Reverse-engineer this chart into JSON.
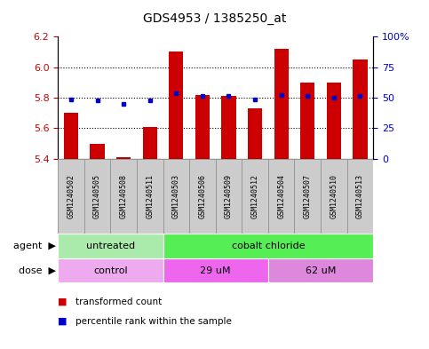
{
  "title": "GDS4953 / 1385250_at",
  "samples": [
    "GSM1240502",
    "GSM1240505",
    "GSM1240508",
    "GSM1240511",
    "GSM1240503",
    "GSM1240506",
    "GSM1240509",
    "GSM1240512",
    "GSM1240504",
    "GSM1240507",
    "GSM1240510",
    "GSM1240513"
  ],
  "red_values": [
    5.7,
    5.5,
    5.41,
    5.61,
    6.1,
    5.82,
    5.81,
    5.73,
    6.12,
    5.9,
    5.9,
    6.05
  ],
  "blue_values": [
    5.79,
    5.78,
    5.76,
    5.78,
    5.83,
    5.81,
    5.81,
    5.79,
    5.82,
    5.81,
    5.8,
    5.81
  ],
  "ymin": 5.4,
  "ymax": 6.2,
  "yticks": [
    5.4,
    5.6,
    5.8,
    6.0,
    6.2
  ],
  "right_yticks": [
    0,
    25,
    50,
    75,
    100
  ],
  "right_ylabels": [
    "0",
    "25",
    "50",
    "75",
    "100%"
  ],
  "bar_color": "#cc0000",
  "dot_color": "#0000cc",
  "agent_groups": [
    {
      "label": "untreated",
      "start": 0,
      "end": 4,
      "color": "#aaeaaa"
    },
    {
      "label": "cobalt chloride",
      "start": 4,
      "end": 12,
      "color": "#55ee55"
    }
  ],
  "dose_groups": [
    {
      "label": "control",
      "start": 0,
      "end": 4,
      "color": "#eeaaee"
    },
    {
      "label": "29 uM",
      "start": 4,
      "end": 8,
      "color": "#ee66ee"
    },
    {
      "label": "62 uM",
      "start": 8,
      "end": 12,
      "color": "#dd88dd"
    }
  ],
  "legend_red": "transformed count",
  "legend_blue": "percentile rank within the sample",
  "agent_label": "agent",
  "dose_label": "dose",
  "bar_width": 0.55,
  "background_color": "#ffffff",
  "sample_box_color": "#cccccc",
  "sample_box_edge": "#999999"
}
